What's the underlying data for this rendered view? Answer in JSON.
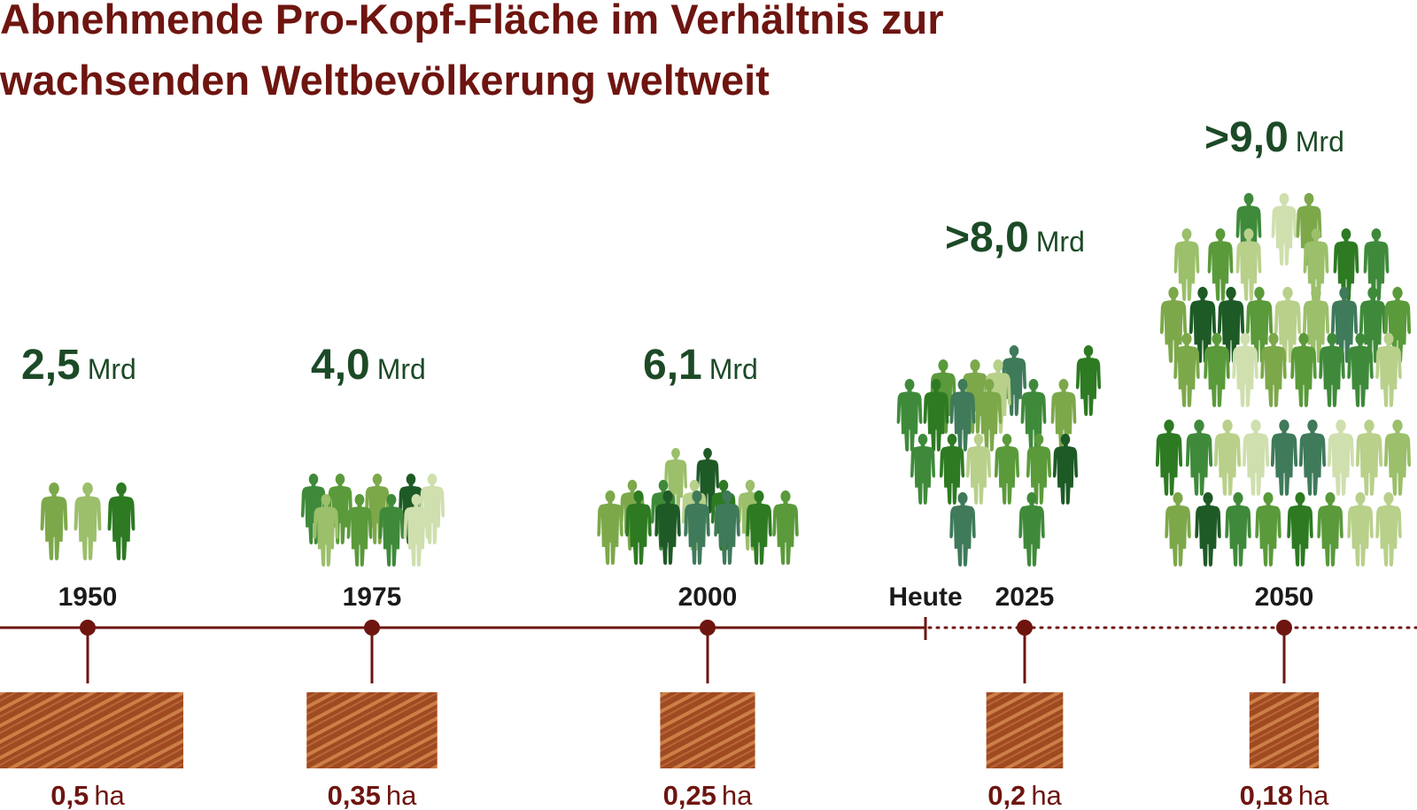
{
  "chart_data": {
    "type": "pictogram-timeline",
    "title": "Abnehmende Pro-Kopf-Fläche im Verhältnis zur wachsenden Weltbevölkerung weltweit",
    "title_lines": [
      "Abnehmende Pro-Kopf-Fläche im Verhältnis zur",
      "wachsenden Weltbevölkerung weltweit"
    ],
    "today_label": "Heute",
    "today_marker_year": 2012,
    "population_unit": "Mrd",
    "area_unit": "ha",
    "points": [
      {
        "year": "1950",
        "population_label": "2,5",
        "population": 2.5,
        "area_label": "0,5",
        "area_ha": 0.5,
        "projected": false
      },
      {
        "year": "1975",
        "population_label": "4,0",
        "population": 4.0,
        "area_label": "0,35",
        "area_ha": 0.35,
        "projected": false
      },
      {
        "year": "2000",
        "population_label": "6,1",
        "population": 6.1,
        "area_label": "0,25",
        "area_ha": 0.25,
        "projected": false
      },
      {
        "year": "2025",
        "population_label": ">8,0",
        "population": 8.0,
        "area_label": "0,2",
        "area_ha": 0.2,
        "projected": true
      },
      {
        "year": "2050",
        "population_label": ">9,0",
        "population": 9.0,
        "area_label": "0,18",
        "area_ha": 0.18,
        "projected": true
      }
    ],
    "colors": {
      "title": "#6e1510",
      "timeline": "#6e1510",
      "population_text": "#1c4a26",
      "year_text": "#1a1a1a",
      "area_text": "#6e1510",
      "soil_base": "#a04a22",
      "soil_stripe": "#d4884e",
      "people_palette": [
        "#1e5a26",
        "#2d7a22",
        "#3f8a3a",
        "#5a9a3a",
        "#7ca84a",
        "#9bbf6a",
        "#b8d08a",
        "#cfdfae",
        "#3f7a5a"
      ]
    }
  }
}
